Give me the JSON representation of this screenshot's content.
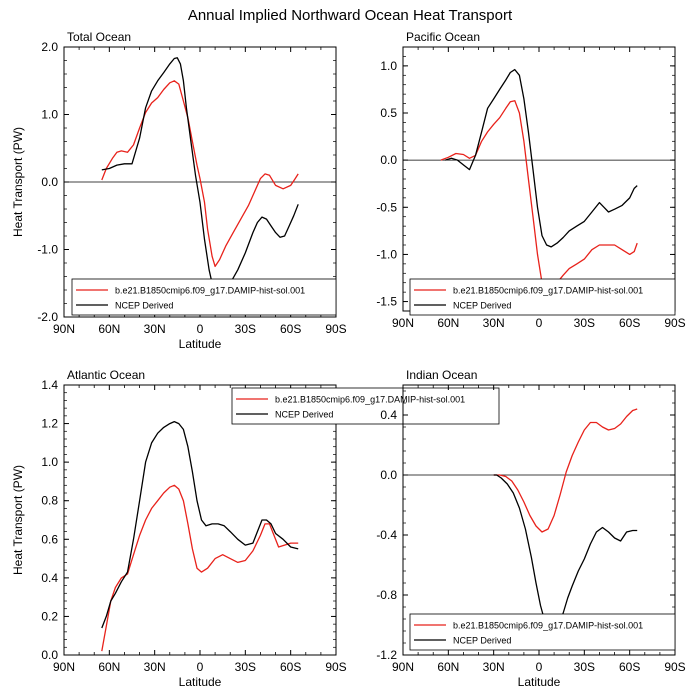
{
  "title": "Annual Implied Northward Ocean Heat Transport",
  "colors": {
    "model": "#e8221b",
    "obs": "#000000",
    "zero_line": "#000000"
  },
  "chart_data": [
    {
      "type": "line",
      "title": "Total Ocean",
      "xlabel": "Latitude",
      "ylabel": "Heat Transport (PW)",
      "x_ticks": [
        "90N",
        "60N",
        "30N",
        "0",
        "30S",
        "60S",
        "90S"
      ],
      "x_tick_values": [
        90,
        60,
        30,
        0,
        -30,
        -60,
        -90
      ],
      "xlim": [
        90,
        -90
      ],
      "ylim": [
        -2.0,
        2.0
      ],
      "y_ticks": [
        2.0,
        1.0,
        0.0,
        -1.0,
        -2.0
      ],
      "y_tick_labels": [
        "2.0",
        "1.0",
        "0.0",
        "-1.0",
        "-2.0"
      ],
      "zero_line": true,
      "legend_position": "bottom-left",
      "series": [
        {
          "name": "b.e21.B1850cmip6.f09_g17.DAMIP-hist-sol.001",
          "color": "#e8221b",
          "x": [
            65,
            62,
            58,
            55,
            52,
            48,
            44,
            40,
            36,
            32,
            28,
            24,
            20,
            17,
            14,
            11,
            8,
            5,
            2,
            0,
            -3,
            -5,
            -8,
            -10,
            -13,
            -17,
            -22,
            -27,
            -32,
            -36,
            -40,
            -43,
            -46,
            -50,
            -55,
            -60,
            -63,
            -65
          ],
          "y": [
            0.03,
            0.2,
            0.35,
            0.44,
            0.46,
            0.44,
            0.55,
            0.8,
            1.03,
            1.17,
            1.25,
            1.37,
            1.47,
            1.5,
            1.45,
            1.2,
            0.95,
            0.6,
            0.25,
            0.05,
            -0.3,
            -0.7,
            -1.1,
            -1.25,
            -1.15,
            -0.95,
            -0.75,
            -0.55,
            -0.35,
            -0.15,
            0.05,
            0.12,
            0.1,
            -0.05,
            -0.1,
            -0.05,
            0.05,
            0.12
          ]
        },
        {
          "name": "NCEP Derived",
          "color": "#000000",
          "x": [
            65,
            60,
            55,
            50,
            45,
            40,
            36,
            32,
            28,
            24,
            20,
            17,
            15,
            13,
            11,
            9,
            6,
            3,
            0,
            -3,
            -6,
            -9,
            -12,
            -16,
            -20,
            -25,
            -30,
            -35,
            -38,
            -41,
            -44,
            -47,
            -50,
            -53,
            -56,
            -59,
            -62,
            -65
          ],
          "y": [
            0.18,
            0.2,
            0.25,
            0.27,
            0.27,
            0.65,
            1.1,
            1.35,
            1.5,
            1.62,
            1.75,
            1.83,
            1.84,
            1.75,
            1.5,
            1.1,
            0.6,
            0.1,
            -0.3,
            -0.85,
            -1.3,
            -1.6,
            -1.65,
            -1.6,
            -1.5,
            -1.3,
            -1.05,
            -0.75,
            -0.6,
            -0.52,
            -0.55,
            -0.65,
            -0.75,
            -0.82,
            -0.8,
            -0.65,
            -0.5,
            -0.33
          ]
        }
      ]
    },
    {
      "type": "line",
      "title": "Pacific Ocean",
      "xlabel": "",
      "ylabel": "",
      "x_ticks": [
        "90N",
        "60N",
        "30N",
        "0",
        "30S",
        "60S",
        "90S"
      ],
      "x_tick_values": [
        90,
        60,
        30,
        0,
        -30,
        -60,
        -90
      ],
      "xlim": [
        90,
        -90
      ],
      "ylim": [
        -1.6,
        1.2
      ],
      "y_ticks": [
        1.0,
        0.5,
        0.0,
        -0.5,
        -1.0,
        -1.5
      ],
      "y_tick_labels": [
        "1.0",
        "0.5",
        "0.0",
        "-0.5",
        "-1.0",
        "-1.5"
      ],
      "zero_line": true,
      "legend_position": "bottom-left",
      "series": [
        {
          "name": "b.e21.B1850cmip6.f09_g17.DAMIP-hist-sol.001",
          "color": "#e8221b",
          "x": [
            65,
            60,
            55,
            50,
            46,
            42,
            38,
            34,
            30,
            26,
            22,
            19,
            16,
            13,
            10,
            7,
            4,
            1,
            -2,
            -5,
            -8,
            -12,
            -16,
            -20,
            -25,
            -30,
            -35,
            -40,
            -45,
            -50,
            -55,
            -60,
            -63,
            -65
          ],
          "y": [
            0.0,
            0.03,
            0.07,
            0.06,
            0.02,
            0.05,
            0.2,
            0.3,
            0.38,
            0.45,
            0.55,
            0.62,
            0.63,
            0.5,
            0.2,
            -0.2,
            -0.6,
            -1.0,
            -1.3,
            -1.38,
            -1.35,
            -1.3,
            -1.22,
            -1.15,
            -1.1,
            -1.05,
            -0.95,
            -0.9,
            -0.9,
            -0.9,
            -0.95,
            -1.0,
            -0.97,
            -0.88
          ]
        },
        {
          "name": "NCEP Derived",
          "color": "#000000",
          "x": [
            62,
            58,
            54,
            50,
            46,
            42,
            38,
            34,
            30,
            26,
            22,
            19,
            16,
            13,
            10,
            7,
            4,
            1,
            -2,
            -5,
            -8,
            -12,
            -16,
            -20,
            -25,
            -30,
            -35,
            -40,
            -43,
            -46,
            -50,
            -55,
            -60,
            -63,
            -65
          ],
          "y": [
            0.0,
            0.02,
            0.0,
            -0.05,
            -0.1,
            0.05,
            0.3,
            0.55,
            0.65,
            0.75,
            0.85,
            0.93,
            0.96,
            0.9,
            0.65,
            0.3,
            -0.1,
            -0.5,
            -0.8,
            -0.9,
            -0.92,
            -0.88,
            -0.82,
            -0.75,
            -0.7,
            -0.65,
            -0.55,
            -0.45,
            -0.5,
            -0.55,
            -0.52,
            -0.48,
            -0.4,
            -0.3,
            -0.27
          ]
        }
      ]
    },
    {
      "type": "line",
      "title": "Atlantic Ocean",
      "xlabel": "Latitude",
      "ylabel": "Heat Transport (PW)",
      "x_ticks": [
        "90N",
        "60N",
        "30N",
        "0",
        "30S",
        "60S",
        "90S"
      ],
      "x_tick_values": [
        90,
        60,
        30,
        0,
        -30,
        -60,
        -90
      ],
      "xlim": [
        90,
        -90
      ],
      "ylim": [
        0.0,
        1.4
      ],
      "y_ticks": [
        1.4,
        1.2,
        1.0,
        0.8,
        0.6,
        0.4,
        0.2,
        0.0
      ],
      "y_tick_labels": [
        "1.4",
        "1.2",
        "1.0",
        "0.8",
        "0.6",
        "0.4",
        "0.2",
        "0.0"
      ],
      "zero_line": false,
      "legend_position": "top-center",
      "series": [
        {
          "name": "b.e21.B1850cmip6.f09_g17.DAMIP-hist-sol.001",
          "color": "#e8221b",
          "x": [
            65,
            62,
            59,
            56,
            52,
            48,
            44,
            40,
            36,
            32,
            28,
            24,
            20,
            17,
            14,
            11,
            8,
            5,
            2,
            -1,
            -5,
            -10,
            -15,
            -20,
            -25,
            -30,
            -35,
            -40,
            -43,
            -46,
            -49,
            -52,
            -56,
            -60,
            -65
          ],
          "y": [
            0.02,
            0.15,
            0.28,
            0.35,
            0.4,
            0.42,
            0.52,
            0.62,
            0.7,
            0.76,
            0.8,
            0.84,
            0.87,
            0.88,
            0.86,
            0.8,
            0.68,
            0.55,
            0.45,
            0.43,
            0.45,
            0.5,
            0.52,
            0.5,
            0.48,
            0.49,
            0.54,
            0.62,
            0.68,
            0.68,
            0.62,
            0.56,
            0.57,
            0.58,
            0.58
          ]
        },
        {
          "name": "NCEP Derived",
          "color": "#000000",
          "x": [
            65,
            62,
            59,
            56,
            52,
            48,
            44,
            40,
            36,
            32,
            28,
            24,
            20,
            17,
            14,
            11,
            8,
            5,
            2,
            -1,
            -4,
            -8,
            -12,
            -16,
            -20,
            -25,
            -30,
            -35,
            -38,
            -41,
            -44,
            -47,
            -50,
            -55,
            -60,
            -65
          ],
          "y": [
            0.14,
            0.2,
            0.28,
            0.32,
            0.38,
            0.43,
            0.6,
            0.8,
            1.0,
            1.1,
            1.15,
            1.18,
            1.2,
            1.21,
            1.2,
            1.17,
            1.08,
            0.95,
            0.8,
            0.7,
            0.67,
            0.68,
            0.68,
            0.67,
            0.64,
            0.6,
            0.57,
            0.58,
            0.64,
            0.7,
            0.7,
            0.68,
            0.63,
            0.6,
            0.56,
            0.55
          ]
        }
      ]
    },
    {
      "type": "line",
      "title": "Indian Ocean",
      "xlabel": "Latitude",
      "ylabel": "",
      "x_ticks": [
        "90N",
        "60N",
        "30N",
        "0",
        "30S",
        "60S",
        "90S"
      ],
      "x_tick_values": [
        90,
        60,
        30,
        0,
        -30,
        -60,
        -90
      ],
      "xlim": [
        90,
        -90
      ],
      "ylim": [
        -1.2,
        0.6
      ],
      "y_ticks": [
        0.4,
        0.0,
        -0.4,
        -0.8,
        -1.2
      ],
      "y_tick_labels": [
        "0.4",
        "0.0",
        "-0.4",
        "-0.8",
        "-1.2"
      ],
      "zero_line": true,
      "legend_position": "bottom-left",
      "series": [
        {
          "name": "b.e21.B1850cmip6.f09_g17.DAMIP-hist-sol.001",
          "color": "#e8221b",
          "x": [
            30,
            26,
            22,
            18,
            14,
            10,
            6,
            2,
            -2,
            -6,
            -10,
            -14,
            -18,
            -22,
            -26,
            -30,
            -34,
            -38,
            -42,
            -46,
            -50,
            -54,
            -58,
            -62,
            -65
          ],
          "y": [
            0.0,
            0.0,
            -0.01,
            -0.04,
            -0.1,
            -0.18,
            -0.27,
            -0.34,
            -0.38,
            -0.36,
            -0.27,
            -0.13,
            0.02,
            0.13,
            0.22,
            0.3,
            0.35,
            0.35,
            0.32,
            0.3,
            0.31,
            0.34,
            0.39,
            0.43,
            0.44
          ]
        },
        {
          "name": "NCEP Derived",
          "color": "#000000",
          "x": [
            30,
            28,
            25,
            21,
            17,
            13,
            9,
            5,
            2,
            -1,
            -4,
            -7,
            -10,
            -13,
            -16,
            -19,
            -22,
            -26,
            -30,
            -34,
            -38,
            -42,
            -46,
            -50,
            -54,
            -58,
            -62,
            -65
          ],
          "y": [
            0.0,
            0.0,
            -0.02,
            -0.06,
            -0.12,
            -0.22,
            -0.36,
            -0.55,
            -0.72,
            -0.87,
            -0.98,
            -1.04,
            -1.05,
            -1.0,
            -0.92,
            -0.82,
            -0.74,
            -0.64,
            -0.56,
            -0.46,
            -0.38,
            -0.35,
            -0.38,
            -0.42,
            -0.44,
            -0.38,
            -0.37,
            -0.37
          ]
        }
      ]
    }
  ]
}
